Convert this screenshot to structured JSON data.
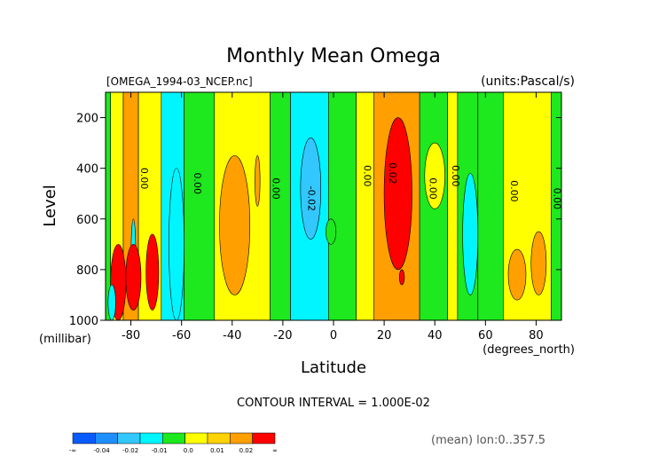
{
  "chart_data": {
    "type": "heatmap",
    "title": "Monthly Mean Omega",
    "file_label": "[OMEGA_1994-03_NCEP.nc]",
    "units_label": "(units:Pascal/s)",
    "xlabel": "Latitude",
    "xunits": "(degrees_north)",
    "ylabel": "Level",
    "yunits": "(millibar)",
    "xlim": [
      -90,
      90
    ],
    "ylim": [
      1000,
      100
    ],
    "x_ticks": [
      -80,
      -60,
      -40,
      -20,
      0,
      20,
      40,
      60,
      80
    ],
    "x_tick_labels": [
      "-80",
      "-60",
      "-40",
      "-20",
      "0",
      "20",
      "40",
      "60",
      "80"
    ],
    "y_ticks": [
      200,
      400,
      600,
      800,
      1000
    ],
    "y_tick_labels": [
      "200",
      "400",
      "600",
      "800",
      "1000"
    ],
    "contour_interval": "CONTOUR INTERVAL = 1.000E-02",
    "mean_note": "(mean) lon:0..357.5",
    "bands": [
      {
        "x": [
          -90,
          -88
        ],
        "value": 0.0
      },
      {
        "x": [
          -88,
          -83
        ],
        "value": 0.005
      },
      {
        "x": [
          -83,
          -77
        ],
        "value": 0.015
      },
      {
        "x": [
          -77,
          -68
        ],
        "value": 0.005
      },
      {
        "x": [
          -68,
          -59
        ],
        "value": -0.005
      },
      {
        "x": [
          -59,
          -47
        ],
        "value": 0.0
      },
      {
        "x": [
          -47,
          -25
        ],
        "value": 0.005
      },
      {
        "x": [
          -25,
          -17
        ],
        "value": 0.0
      },
      {
        "x": [
          -17,
          -2
        ],
        "value": -0.005
      },
      {
        "x": [
          -2,
          9
        ],
        "value": 0.0
      },
      {
        "x": [
          9,
          16
        ],
        "value": 0.005
      },
      {
        "x": [
          16,
          34
        ],
        "value": 0.015
      },
      {
        "x": [
          34,
          45
        ],
        "value": 0.0
      },
      {
        "x": [
          45,
          49
        ],
        "value": 0.005
      },
      {
        "x": [
          49,
          57
        ],
        "value": 0.0
      },
      {
        "x": [
          57,
          67
        ],
        "value": 0.0
      },
      {
        "x": [
          67,
          86
        ],
        "value": 0.005
      },
      {
        "x": [
          86,
          90
        ],
        "value": 0.0
      }
    ],
    "features": [
      {
        "x": [
          -80,
          -78
        ],
        "y": [
          600,
          950
        ],
        "value": -0.005
      },
      {
        "x": [
          -74,
          -69
        ],
        "y": [
          660,
          960
        ],
        "value": 0.025
      },
      {
        "x": [
          -82,
          -76
        ],
        "y": [
          700,
          960
        ],
        "value": 0.025
      },
      {
        "x": [
          -88,
          -82
        ],
        "y": [
          700,
          1000
        ],
        "value": 0.025
      },
      {
        "x": [
          -89,
          -86
        ],
        "y": [
          860,
          1000
        ],
        "value": -0.005
      },
      {
        "x": [
          -65,
          -59
        ],
        "y": [
          400,
          1000
        ],
        "value": -0.005
      },
      {
        "x": [
          -45,
          -33
        ],
        "y": [
          350,
          900
        ],
        "value": 0.015
      },
      {
        "x": [
          -31,
          -29
        ],
        "y": [
          350,
          550
        ],
        "value": 0.015
      },
      {
        "x": [
          -13,
          -5
        ],
        "y": [
          280,
          680
        ],
        "value": -0.015
      },
      {
        "x": [
          -3,
          1
        ],
        "y": [
          600,
          700
        ],
        "value": 0.0
      },
      {
        "x": [
          20,
          31
        ],
        "y": [
          200,
          800
        ],
        "value": 0.025
      },
      {
        "x": [
          26,
          28
        ],
        "y": [
          800,
          860
        ],
        "value": 0.025
      },
      {
        "x": [
          36,
          44
        ],
        "y": [
          300,
          560
        ],
        "value": 0.005
      },
      {
        "x": [
          51,
          57
        ],
        "y": [
          420,
          900
        ],
        "value": -0.005
      },
      {
        "x": [
          69,
          76
        ],
        "y": [
          720,
          920
        ],
        "value": 0.015
      },
      {
        "x": [
          78,
          84
        ],
        "y": [
          650,
          900
        ],
        "value": 0.015
      }
    ],
    "contour_labels": [
      {
        "text": "0.00",
        "x": -76,
        "y": 440
      },
      {
        "text": "0.00",
        "x": -55,
        "y": 460
      },
      {
        "text": "0.00",
        "x": -24,
        "y": 480
      },
      {
        "text": "-0.02",
        "x": -10,
        "y": 520
      },
      {
        "text": "0.00",
        "x": 12,
        "y": 430
      },
      {
        "text": "0.02",
        "x": 22,
        "y": 420
      },
      {
        "text": "0.00",
        "x": 38,
        "y": 480
      },
      {
        "text": "0.00",
        "x": 47,
        "y": 430
      },
      {
        "text": "0.00",
        "x": 70,
        "y": 490
      },
      {
        "text": "0.00",
        "x": 87,
        "y": 520
      }
    ],
    "colorbar": {
      "colors": [
        "#0a5bff",
        "#1f8fff",
        "#33c7ff",
        "#00f5ff",
        "#1ee81e",
        "#ffff00",
        "#ffd200",
        "#ff9f00",
        "#ff0000"
      ],
      "labels": [
        "-∞",
        "-0.04",
        "-0.02",
        "-0.01",
        "0.0",
        "0.01",
        "0.02",
        "∞"
      ]
    }
  }
}
